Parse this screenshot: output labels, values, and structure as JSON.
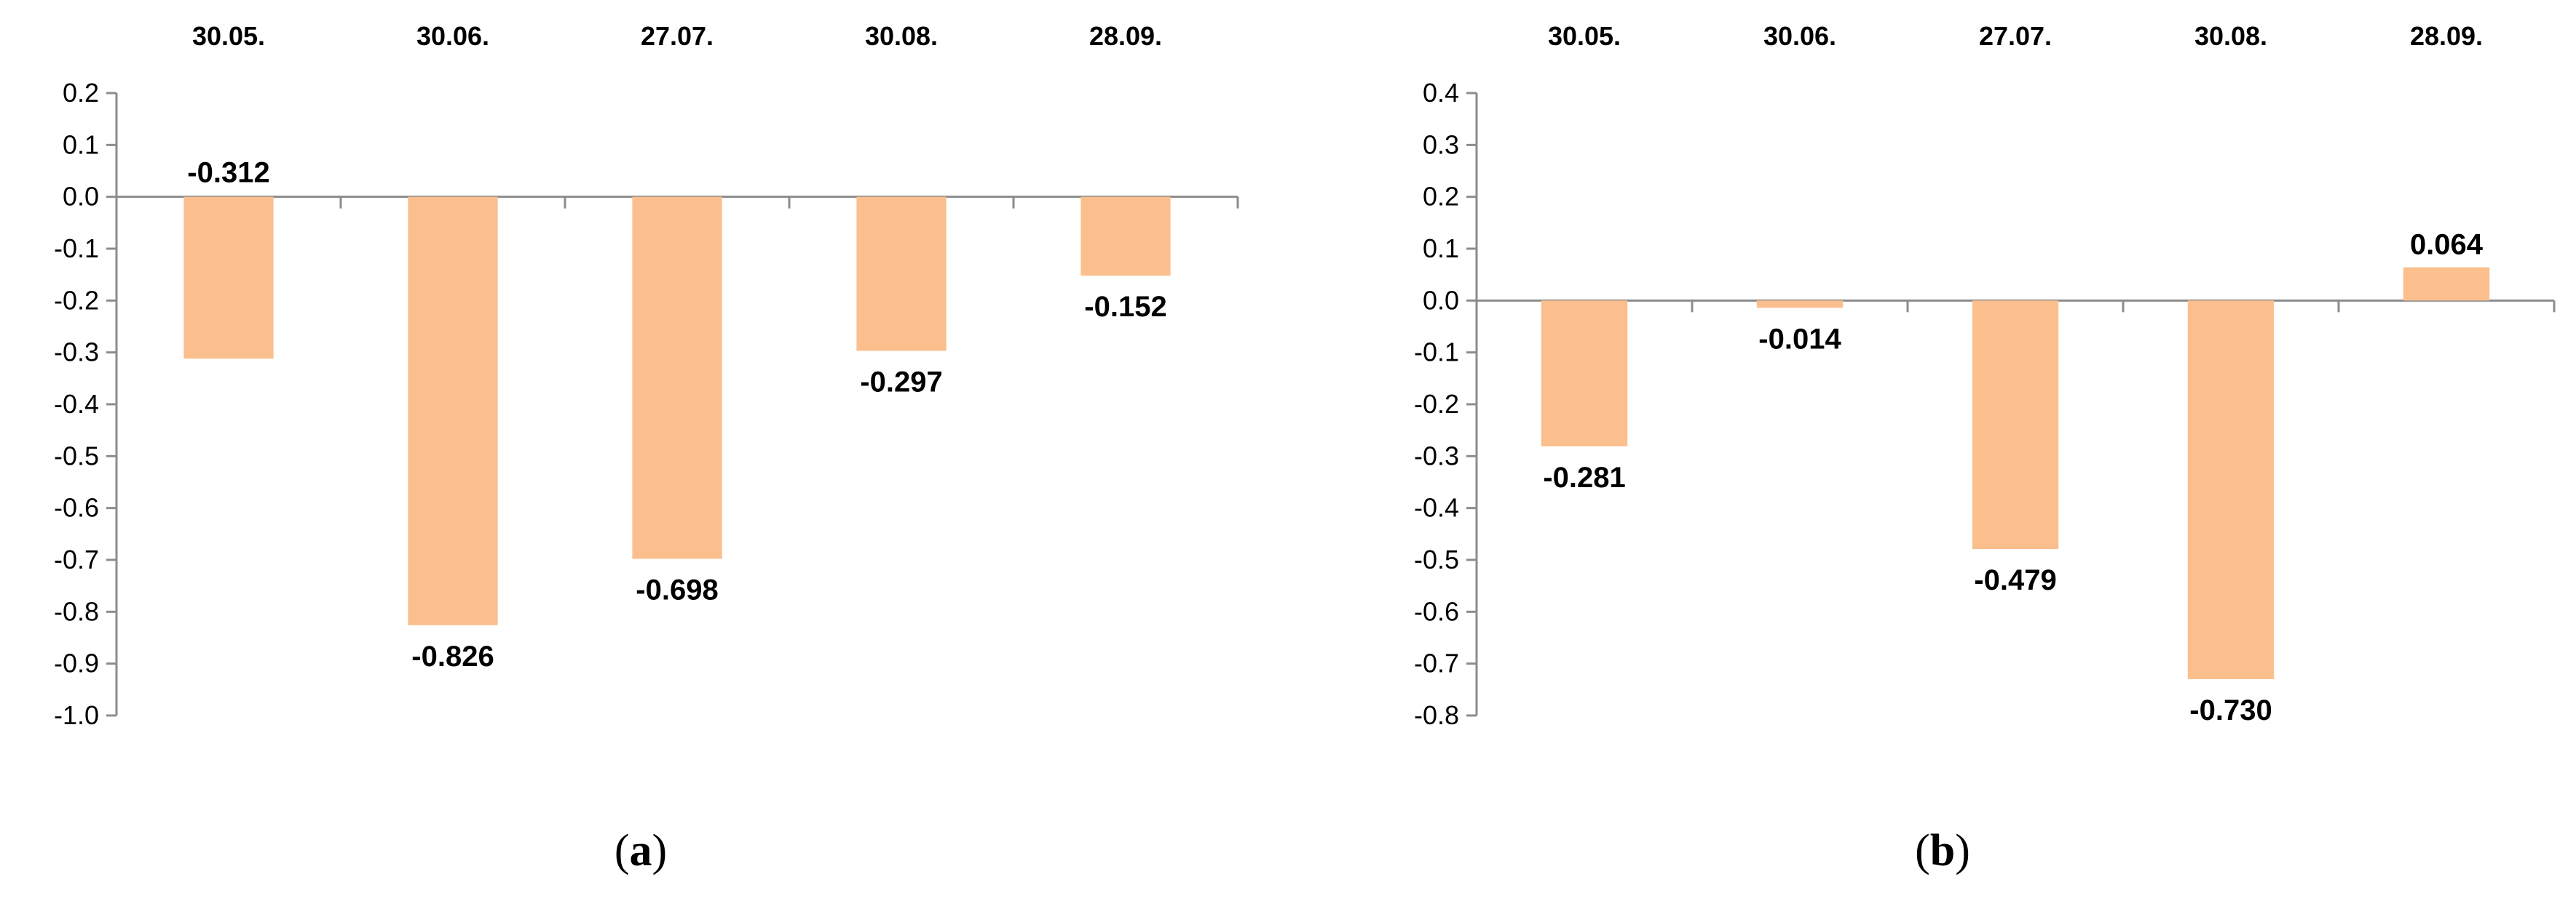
{
  "colors": {
    "bar": "#FBBF8E",
    "axis": "#8C8C8C",
    "text": "#000000"
  },
  "chart_data": [
    {
      "type": "bar",
      "panel": "a",
      "categories": [
        "30.05.",
        "30.06.",
        "27.07.",
        "30.08.",
        "28.09."
      ],
      "values": [
        -0.312,
        -0.826,
        -0.698,
        -0.297,
        -0.152
      ],
      "data_labels": [
        "-0.312",
        "-0.826",
        "-0.698",
        "-0.297",
        "-0.152"
      ],
      "ylim": [
        -1.0,
        0.2
      ],
      "yticks": [
        "0.2",
        "0.1",
        "0.0",
        "-0.1",
        "-0.2",
        "-0.3",
        "-0.4",
        "-0.5",
        "-0.6",
        "-0.7",
        "-0.8",
        "-0.9",
        "-1.0"
      ],
      "ytick_values": [
        0.2,
        0.1,
        0.0,
        -0.1,
        -0.2,
        -0.3,
        -0.4,
        -0.5,
        -0.6,
        -0.7,
        -0.8,
        -0.9,
        -1.0
      ],
      "grid": false,
      "legend": "none",
      "category_axis": "top"
    },
    {
      "type": "bar",
      "panel": "b",
      "categories": [
        "30.05.",
        "30.06.",
        "27.07.",
        "30.08.",
        "28.09."
      ],
      "values": [
        -0.281,
        -0.014,
        -0.479,
        -0.73,
        0.064
      ],
      "data_labels": [
        "-0.281",
        "-0.014",
        "-0.479",
        "-0.730",
        "0.064"
      ],
      "ylim": [
        -0.8,
        0.4
      ],
      "yticks": [
        "0.4",
        "0.3",
        "0.2",
        "0.1",
        "0.0",
        "-0.1",
        "-0.2",
        "-0.3",
        "-0.4",
        "-0.5",
        "-0.6",
        "-0.7",
        "-0.8"
      ],
      "ytick_values": [
        0.4,
        0.3,
        0.2,
        0.1,
        0.0,
        -0.1,
        -0.2,
        -0.3,
        -0.4,
        -0.5,
        -0.6,
        -0.7,
        -0.8
      ],
      "grid": false,
      "legend": "none",
      "category_axis": "top"
    }
  ],
  "captions": {
    "a": {
      "open": "(",
      "letter": "a",
      "close": ")"
    },
    "b": {
      "open": "(",
      "letter": "b",
      "close": ")"
    }
  }
}
